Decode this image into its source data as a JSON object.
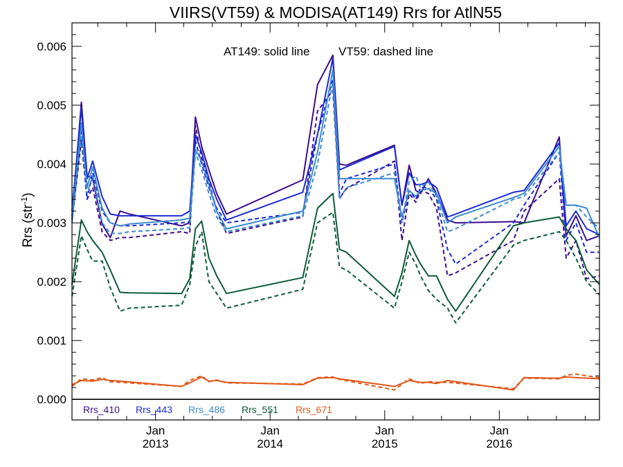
{
  "chart_data": {
    "type": "line",
    "title": "VIIRS(VT59) & MODISA(AT149)  Rrs for AtlN55",
    "annotation_solid": "AT149: solid line",
    "annotation_dashed": "VT59: dashed line",
    "ylabel_main": "Rrs (str",
    "ylabel_sup": "-1",
    "ylabel_close": ")",
    "ylim": [
      -0.00035,
      0.0064
    ],
    "xlim": [
      "2012-04-10",
      "2016-11-15"
    ],
    "yticks": [
      {
        "value": 0.0,
        "label": "0.000"
      },
      {
        "value": 0.001,
        "label": "0.001"
      },
      {
        "value": 0.002,
        "label": "0.002"
      },
      {
        "value": 0.003,
        "label": "0.003"
      },
      {
        "value": 0.004,
        "label": "0.004"
      },
      {
        "value": 0.005,
        "label": "0.005"
      },
      {
        "value": 0.006,
        "label": "0.006"
      }
    ],
    "xticks": [
      {
        "date": "2013-01-01",
        "month": "Jan",
        "year": "2013"
      },
      {
        "date": "2014-01-01",
        "month": "Jan",
        "year": "2014"
      },
      {
        "date": "2015-01-01",
        "month": "Jan",
        "year": "2015"
      },
      {
        "date": "2016-01-01",
        "month": "Jan",
        "year": "2016"
      }
    ],
    "grid": false,
    "legend": "bottom-left",
    "series": [
      {
        "name": "Rrs_410",
        "sensor": "AT149",
        "style": "solid",
        "color": "#3a0c8a",
        "x": [
          "2012-04-10",
          "2012-05-10",
          "2012-05-28",
          "2012-06-15",
          "2012-07-15",
          "2012-08-10",
          "2012-09-10",
          "2012-10-10",
          "2013-03-25",
          "2013-04-20",
          "2013-05-08",
          "2013-05-28",
          "2013-06-20",
          "2013-07-15",
          "2013-08-15",
          "2014-04-15",
          "2014-06-01",
          "2014-07-20",
          "2014-08-10",
          "2014-09-01",
          "2015-02-01",
          "2015-02-25",
          "2015-03-20",
          "2015-04-10",
          "2015-04-25",
          "2015-05-20",
          "2015-06-15",
          "2015-07-20",
          "2015-08-15",
          "2016-02-15",
          "2016-03-20",
          "2016-07-10",
          "2016-08-01",
          "2016-09-01",
          "2016-10-05",
          "2016-11-15"
        ],
        "y": [
          0.0031,
          0.00505,
          0.0038,
          0.00375,
          0.00298,
          0.00275,
          0.0032,
          0.00315,
          0.00295,
          0.003,
          0.0048,
          0.0043,
          0.0039,
          0.0035,
          0.00315,
          0.00373,
          0.00535,
          0.00585,
          0.004,
          0.00398,
          0.00432,
          0.0033,
          0.00398,
          0.00355,
          0.0035,
          0.00375,
          0.0035,
          0.00305,
          0.003,
          0.00302,
          0.003,
          0.00446,
          0.00278,
          0.00312,
          0.0027,
          0.00278
        ]
      },
      {
        "name": "Rrs_410",
        "sensor": "VT59",
        "style": "dashed",
        "color": "#3a0c8a",
        "x": [
          "2012-04-10",
          "2012-05-10",
          "2012-05-28",
          "2012-06-15",
          "2012-07-15",
          "2012-08-10",
          "2012-09-10",
          "2012-10-10",
          "2013-03-25",
          "2013-04-20",
          "2013-05-08",
          "2013-05-28",
          "2013-06-20",
          "2013-07-15",
          "2013-08-15",
          "2014-04-15",
          "2014-06-01",
          "2014-07-20",
          "2014-08-10",
          "2014-09-01",
          "2015-02-01",
          "2015-02-25",
          "2015-03-20",
          "2015-04-10",
          "2015-04-25",
          "2015-05-20",
          "2015-06-15",
          "2015-07-20",
          "2015-08-15",
          "2016-02-15",
          "2016-03-20",
          "2016-07-10",
          "2016-08-01",
          "2016-09-01",
          "2016-10-05",
          "2016-11-15"
        ],
        "y": [
          0.00305,
          0.0044,
          0.0034,
          0.0036,
          0.00285,
          0.0027,
          0.00275,
          0.00275,
          0.00285,
          0.00282,
          0.00465,
          0.0041,
          0.0037,
          0.0032,
          0.00282,
          0.0031,
          0.0049,
          0.00525,
          0.00342,
          0.00358,
          0.00405,
          0.0027,
          0.0035,
          0.00335,
          0.00355,
          0.0035,
          0.00325,
          0.0021,
          0.00215,
          0.0027,
          0.0032,
          0.00375,
          0.0024,
          0.0027,
          0.00205,
          0.0021
        ]
      },
      {
        "name": "Rrs_443",
        "sensor": "AT149",
        "style": "solid",
        "color": "#1c2ad6",
        "x": [
          "2012-04-10",
          "2012-05-10",
          "2012-05-28",
          "2012-06-15",
          "2012-07-15",
          "2012-08-10",
          "2012-09-10",
          "2012-10-10",
          "2013-03-25",
          "2013-04-20",
          "2013-05-08",
          "2013-05-28",
          "2013-06-20",
          "2013-07-15",
          "2013-08-15",
          "2014-04-15",
          "2014-06-01",
          "2014-07-20",
          "2014-08-10",
          "2014-09-01",
          "2015-02-01",
          "2015-02-25",
          "2015-03-20",
          "2015-04-10",
          "2015-04-25",
          "2015-05-20",
          "2015-06-15",
          "2015-07-20",
          "2015-08-15",
          "2016-02-15",
          "2016-03-20",
          "2016-07-10",
          "2016-08-01",
          "2016-09-01",
          "2016-10-05",
          "2016-11-15"
        ],
        "y": [
          0.0032,
          0.00495,
          0.00375,
          0.00405,
          0.00345,
          0.00315,
          0.00312,
          0.00312,
          0.00312,
          0.0032,
          0.0045,
          0.0042,
          0.00375,
          0.0034,
          0.00305,
          0.00352,
          0.0045,
          0.0058,
          0.0039,
          0.00395,
          0.0043,
          0.0033,
          0.00385,
          0.00365,
          0.00365,
          0.0037,
          0.0036,
          0.0031,
          0.00315,
          0.00352,
          0.00355,
          0.00436,
          0.00295,
          0.0032,
          0.0029,
          0.0028
        ]
      },
      {
        "name": "Rrs_443",
        "sensor": "VT59",
        "style": "dashed",
        "color": "#1c2ad6",
        "x": [
          "2012-04-10",
          "2012-05-10",
          "2012-05-28",
          "2012-06-15",
          "2012-07-15",
          "2012-08-10",
          "2012-09-10",
          "2012-10-10",
          "2013-03-25",
          "2013-04-20",
          "2013-05-08",
          "2013-05-28",
          "2013-06-20",
          "2013-07-15",
          "2013-08-15",
          "2014-04-15",
          "2014-06-01",
          "2014-07-20",
          "2014-08-10",
          "2014-09-01",
          "2015-02-01",
          "2015-02-25",
          "2015-03-20",
          "2015-04-10",
          "2015-04-25",
          "2015-05-20",
          "2015-06-15",
          "2015-07-20",
          "2015-08-15",
          "2016-02-15",
          "2016-03-20",
          "2016-07-10",
          "2016-08-01",
          "2016-09-01",
          "2016-10-05",
          "2016-11-15"
        ],
        "y": [
          0.0031,
          0.0046,
          0.0034,
          0.00385,
          0.0032,
          0.003,
          0.00295,
          0.00295,
          0.003,
          0.00302,
          0.0044,
          0.004,
          0.0036,
          0.00325,
          0.003,
          0.00318,
          0.0045,
          0.00545,
          0.0035,
          0.00375,
          0.004,
          0.003,
          0.00355,
          0.0034,
          0.0036,
          0.0036,
          0.0034,
          0.00255,
          0.0023,
          0.003,
          0.0033,
          0.0042,
          0.0027,
          0.003,
          0.0025,
          0.0025
        ]
      },
      {
        "name": "Rrs_486",
        "sensor": "AT149",
        "style": "solid",
        "color": "#3b8ad0",
        "x": [
          "2012-04-10",
          "2012-05-10",
          "2012-05-28",
          "2012-06-15",
          "2012-07-15",
          "2012-08-10",
          "2012-09-10",
          "2012-10-10",
          "2013-03-25",
          "2013-04-20",
          "2013-05-08",
          "2013-05-28",
          "2013-06-20",
          "2013-07-15",
          "2013-08-15",
          "2014-04-15",
          "2014-06-01",
          "2014-07-20",
          "2014-08-10",
          "2014-09-01",
          "2015-02-01",
          "2015-02-25",
          "2015-03-20",
          "2015-04-10",
          "2015-04-25",
          "2015-05-20",
          "2015-06-15",
          "2015-07-20",
          "2015-08-15",
          "2016-02-15",
          "2016-03-20",
          "2016-07-10",
          "2016-08-01",
          "2016-09-01",
          "2016-10-05",
          "2016-11-15"
        ],
        "y": [
          0.0031,
          0.0047,
          0.0036,
          0.00395,
          0.00325,
          0.003,
          0.00295,
          0.00298,
          0.00305,
          0.00308,
          0.00425,
          0.00405,
          0.00365,
          0.0032,
          0.0029,
          0.0032,
          0.0042,
          0.0056,
          0.00375,
          0.00375,
          0.00375,
          0.0031,
          0.00355,
          0.00345,
          0.00355,
          0.00358,
          0.0035,
          0.003,
          0.0031,
          0.00343,
          0.0035,
          0.0043,
          0.0033,
          0.0033,
          0.00325,
          0.00275
        ]
      },
      {
        "name": "Rrs_486",
        "sensor": "VT59",
        "style": "dashed",
        "color": "#3b8ad0",
        "x": [
          "2012-04-10",
          "2012-05-10",
          "2012-05-28",
          "2012-06-15",
          "2012-07-15",
          "2012-08-10",
          "2012-09-10",
          "2012-10-10",
          "2013-03-25",
          "2013-04-20",
          "2013-05-08",
          "2013-05-28",
          "2013-06-20",
          "2013-07-15",
          "2013-08-15",
          "2014-04-15",
          "2014-06-01",
          "2014-07-20",
          "2014-08-10",
          "2014-09-01",
          "2015-02-01",
          "2015-02-25",
          "2015-03-20",
          "2015-04-10",
          "2015-04-25",
          "2015-05-20",
          "2015-06-15",
          "2015-07-20",
          "2015-08-15",
          "2016-02-15",
          "2016-03-20",
          "2016-07-10",
          "2016-08-01",
          "2016-09-01",
          "2016-10-05",
          "2016-11-15"
        ],
        "y": [
          0.003,
          0.0045,
          0.0035,
          0.0038,
          0.003,
          0.00282,
          0.00282,
          0.00285,
          0.0029,
          0.00292,
          0.0042,
          0.0039,
          0.0035,
          0.0031,
          0.00285,
          0.00312,
          0.004,
          0.0054,
          0.0034,
          0.0036,
          0.00385,
          0.003,
          0.0037,
          0.0038,
          0.0036,
          0.0037,
          0.00345,
          0.00285,
          0.0029,
          0.0034,
          0.00345,
          0.0042,
          0.0033,
          0.0033,
          0.0031,
          0.0029
        ]
      },
      {
        "name": "Rrs_551",
        "sensor": "AT149",
        "style": "solid",
        "color": "#0b5a37",
        "x": [
          "2012-04-10",
          "2012-05-10",
          "2012-05-28",
          "2012-06-15",
          "2012-07-15",
          "2012-08-10",
          "2012-09-10",
          "2012-10-10",
          "2013-03-25",
          "2013-04-20",
          "2013-05-08",
          "2013-05-28",
          "2013-06-20",
          "2013-07-15",
          "2013-08-15",
          "2014-04-15",
          "2014-06-01",
          "2014-07-20",
          "2014-08-10",
          "2014-09-01",
          "2015-02-01",
          "2015-02-25",
          "2015-03-20",
          "2015-04-10",
          "2015-04-25",
          "2015-05-20",
          "2015-06-15",
          "2015-07-20",
          "2015-08-15",
          "2016-02-15",
          "2016-03-20",
          "2016-07-10",
          "2016-08-01",
          "2016-09-01",
          "2016-10-05",
          "2016-11-15"
        ],
        "y": [
          0.00195,
          0.00305,
          0.00285,
          0.0027,
          0.0025,
          0.0022,
          0.00182,
          0.00181,
          0.0018,
          0.00205,
          0.0029,
          0.00303,
          0.0024,
          0.0021,
          0.0018,
          0.00207,
          0.00325,
          0.0035,
          0.00255,
          0.0025,
          0.00175,
          0.00215,
          0.0027,
          0.00245,
          0.0023,
          0.0021,
          0.0021,
          0.0017,
          0.0015,
          0.00295,
          0.003,
          0.0031,
          0.0029,
          0.0027,
          0.0022,
          0.00195
        ]
      },
      {
        "name": "Rrs_551",
        "sensor": "VT59",
        "style": "dashed",
        "color": "#0b5a37",
        "x": [
          "2012-04-10",
          "2012-05-10",
          "2012-05-28",
          "2012-06-15",
          "2012-07-15",
          "2012-08-10",
          "2012-09-10",
          "2012-10-10",
          "2013-03-25",
          "2013-04-20",
          "2013-05-08",
          "2013-05-28",
          "2013-06-20",
          "2013-07-15",
          "2013-08-15",
          "2014-04-15",
          "2014-06-01",
          "2014-07-20",
          "2014-08-10",
          "2014-09-01",
          "2015-02-01",
          "2015-02-25",
          "2015-03-20",
          "2015-04-10",
          "2015-04-25",
          "2015-05-20",
          "2015-06-15",
          "2015-07-20",
          "2015-08-15",
          "2016-02-15",
          "2016-03-20",
          "2016-07-10",
          "2016-08-01",
          "2016-09-01",
          "2016-10-05",
          "2016-11-15"
        ],
        "y": [
          0.00175,
          0.00278,
          0.00255,
          0.00235,
          0.00235,
          0.0019,
          0.0015,
          0.00155,
          0.0016,
          0.00195,
          0.0026,
          0.00285,
          0.002,
          0.0018,
          0.00155,
          0.00187,
          0.003,
          0.00318,
          0.00225,
          0.0022,
          0.00155,
          0.002,
          0.0025,
          0.0023,
          0.0021,
          0.00185,
          0.0017,
          0.00155,
          0.0013,
          0.00262,
          0.0027,
          0.00285,
          0.0027,
          0.0024,
          0.002,
          0.00178
        ]
      },
      {
        "name": "Rrs_671",
        "sensor": "AT149",
        "style": "solid",
        "color": "#e0581a",
        "x": [
          "2012-04-10",
          "2012-05-10",
          "2012-06-15",
          "2012-07-15",
          "2012-08-10",
          "2012-09-10",
          "2013-03-25",
          "2013-04-20",
          "2013-05-28",
          "2013-06-20",
          "2013-07-15",
          "2013-08-15",
          "2014-04-15",
          "2014-06-01",
          "2014-07-20",
          "2014-08-10",
          "2015-02-01",
          "2015-03-20",
          "2015-04-25",
          "2015-05-20",
          "2015-06-15",
          "2015-07-20",
          "2016-02-15",
          "2016-03-20",
          "2016-07-10",
          "2016-08-01",
          "2016-09-01",
          "2016-10-05",
          "2016-11-15"
        ],
        "y": [
          0.00025,
          0.00032,
          0.00031,
          0.00034,
          0.00032,
          0.00031,
          0.00022,
          0.00028,
          0.00038,
          0.00031,
          0.00032,
          0.00029,
          0.00025,
          0.00036,
          0.00037,
          0.00035,
          0.00022,
          0.00032,
          0.00029,
          0.00029,
          0.00027,
          0.00032,
          0.00016,
          0.00037,
          0.00036,
          0.00038,
          0.00037,
          0.00036,
          0.00035
        ]
      },
      {
        "name": "Rrs_671",
        "sensor": "VT59",
        "style": "dashed",
        "color": "#e0581a",
        "x": [
          "2012-04-10",
          "2012-05-10",
          "2012-06-15",
          "2012-07-15",
          "2012-08-10",
          "2012-09-10",
          "2013-03-25",
          "2013-04-20",
          "2013-05-28",
          "2013-06-20",
          "2013-07-15",
          "2013-08-15",
          "2014-04-15",
          "2014-06-01",
          "2014-07-20",
          "2014-08-10",
          "2015-02-01",
          "2015-03-20",
          "2015-04-25",
          "2015-05-20",
          "2015-06-15",
          "2015-07-20",
          "2016-02-15",
          "2016-03-20",
          "2016-07-10",
          "2016-08-01",
          "2016-09-01",
          "2016-10-05",
          "2016-11-15"
        ],
        "y": [
          0.00022,
          0.00035,
          0.00033,
          0.00037,
          0.0003,
          0.00029,
          0.00022,
          0.00032,
          0.0004,
          0.0003,
          0.00033,
          0.00028,
          0.00026,
          0.00037,
          0.00038,
          0.00034,
          0.00016,
          0.00035,
          0.00027,
          0.0003,
          0.00029,
          0.00029,
          0.00018,
          0.00036,
          0.00035,
          0.00041,
          0.00043,
          0.0004,
          0.00037
        ]
      }
    ],
    "legend_entries": [
      {
        "label": "Rrs_410",
        "color": "#3a0c8a"
      },
      {
        "label": "Rrs_443",
        "color": "#1c2ad6"
      },
      {
        "label": "Rrs_486",
        "color": "#3b8ad0"
      },
      {
        "label": "Rrs_551",
        "color": "#0b5a37"
      },
      {
        "label": "Rrs_671",
        "color": "#e0581a"
      }
    ]
  }
}
